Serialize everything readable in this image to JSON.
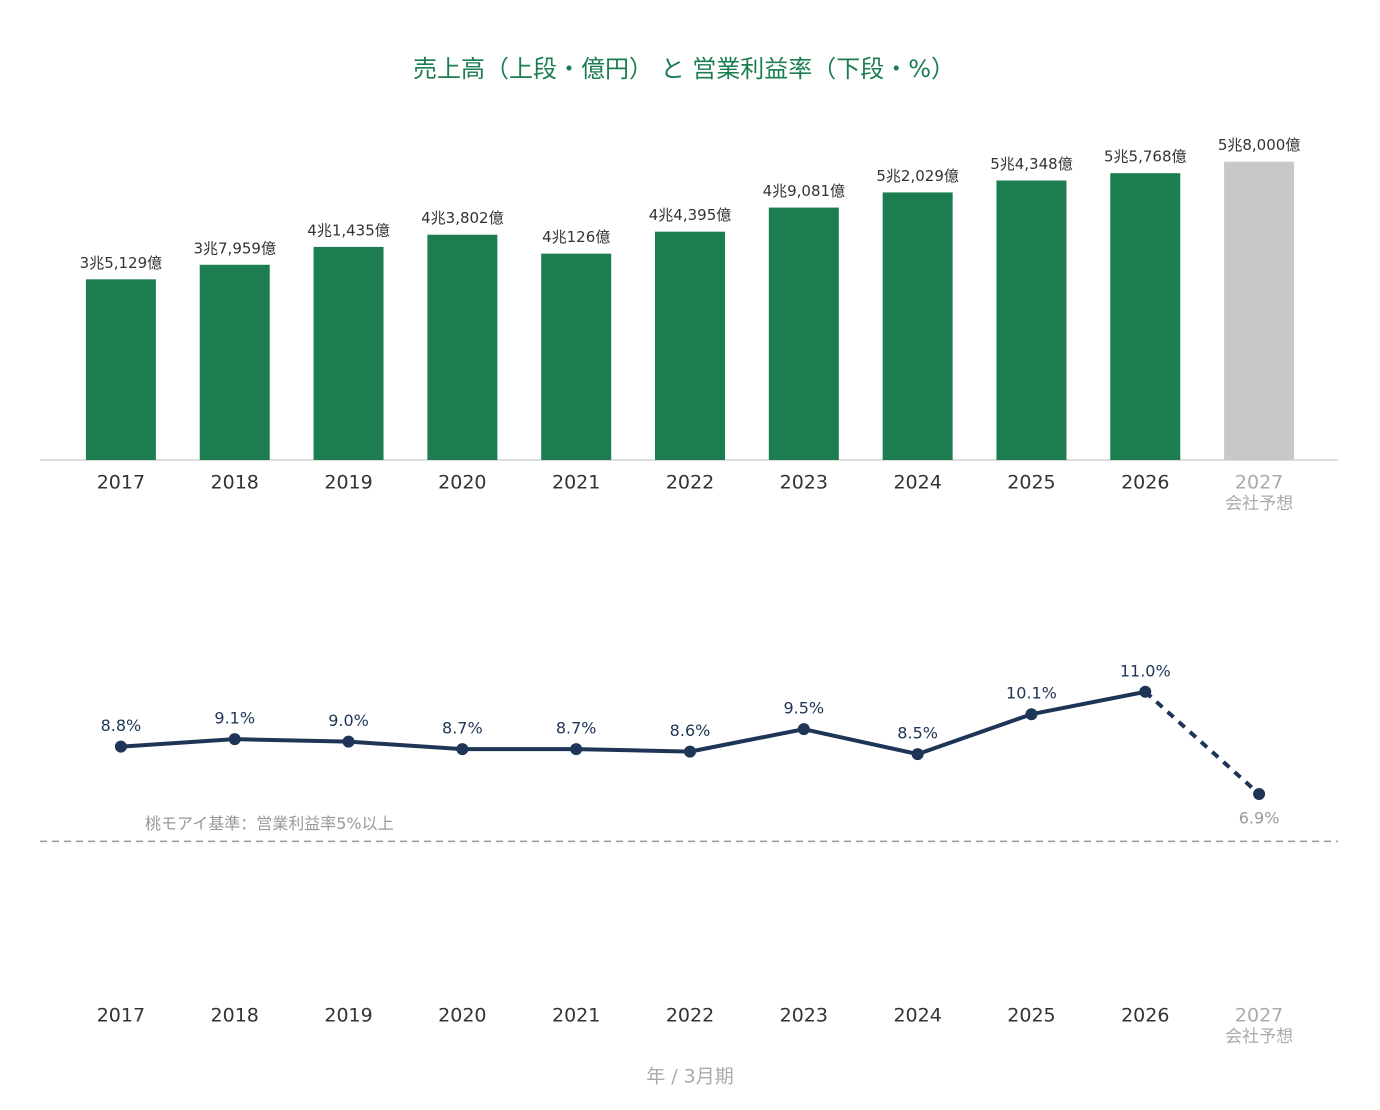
{
  "chart_data": [
    {
      "type": "bar",
      "title": "売上高（上段・億円） と 営業利益率（下段・%）",
      "categories": [
        "2017",
        "2018",
        "2019",
        "2020",
        "2021",
        "2022",
        "2023",
        "2024",
        "2025",
        "2026",
        "2027"
      ],
      "forecast_note": "会社予想",
      "values": [
        35129,
        37959,
        41435,
        43802,
        40126,
        44395,
        49081,
        52029,
        54348,
        55768,
        58000
      ],
      "value_labels": [
        "3兆5,129億",
        "3兆7,959億",
        "4兆1,435億",
        "4兆3,802億",
        "4兆126億",
        "4兆4,395億",
        "4兆9,081億",
        "5兆2,029億",
        "5兆4,348億",
        "5兆5,768億",
        "5兆8,000億"
      ],
      "colors": [
        "#1b7d50",
        "#1b7d50",
        "#1b7d50",
        "#1b7d50",
        "#1b7d50",
        "#1b7d50",
        "#1b7d50",
        "#1b7d50",
        "#1b7d50",
        "#1b7d50",
        "#c8c8c8"
      ],
      "ylim": [
        0,
        70000
      ]
    },
    {
      "type": "line",
      "xlabel": "年 / 3月期",
      "categories": [
        "2017",
        "2018",
        "2019",
        "2020",
        "2021",
        "2022",
        "2023",
        "2024",
        "2025",
        "2026",
        "2027"
      ],
      "forecast_note": "会社予想",
      "values": [
        8.8,
        9.1,
        9.0,
        8.7,
        8.7,
        8.6,
        9.5,
        8.5,
        10.1,
        11.0,
        6.9
      ],
      "value_labels": [
        "8.8%",
        "9.1%",
        "9.0%",
        "8.7%",
        "8.7%",
        "8.6%",
        "9.5%",
        "8.5%",
        "10.1%",
        "11.0%",
        "6.9%"
      ],
      "color": "#1f3557",
      "reference": {
        "value": 5,
        "label": "桃モアイ基準：営業利益率5%以上"
      },
      "ylim": [
        0,
        14
      ]
    }
  ]
}
